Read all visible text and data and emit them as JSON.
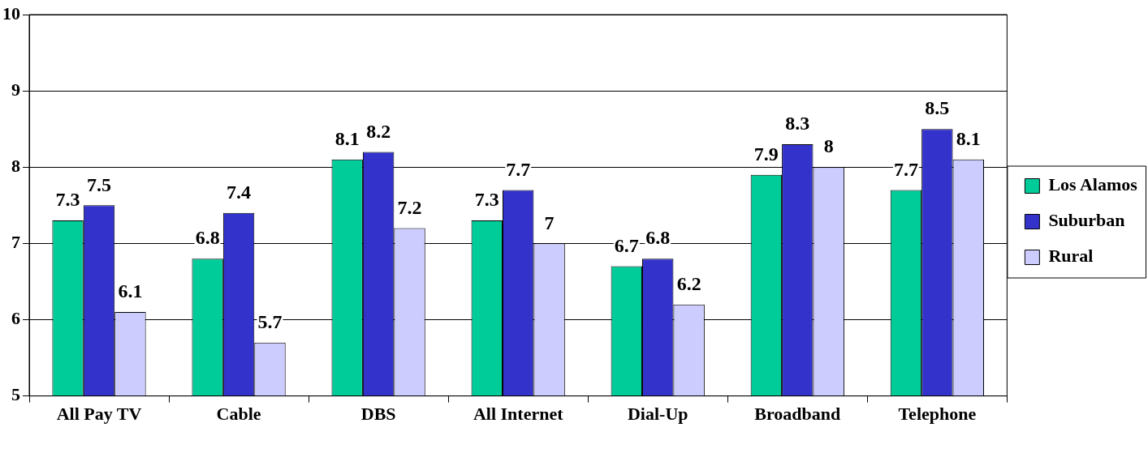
{
  "chart_data": {
    "type": "bar",
    "categories": [
      "All Pay TV",
      "Cable",
      "DBS",
      "All Internet",
      "Dial-Up",
      "Broadband",
      "Telephone"
    ],
    "series": [
      {
        "name": "Los Alamos",
        "color": "#00cc99",
        "values": [
          7.3,
          6.8,
          8.1,
          7.3,
          6.7,
          7.9,
          7.7
        ]
      },
      {
        "name": "Suburban",
        "color": "#3333cc",
        "values": [
          7.5,
          7.4,
          8.2,
          7.7,
          6.8,
          8.3,
          8.5
        ]
      },
      {
        "name": "Rural",
        "color": "#ccccff",
        "values": [
          6.1,
          5.7,
          7.2,
          7,
          6.2,
          8,
          8.1
        ]
      }
    ],
    "ylim": [
      5,
      10
    ],
    "yticks": [
      5,
      6,
      7,
      8,
      9,
      10
    ],
    "grid": "y",
    "legend": "right",
    "data_labels": true
  }
}
